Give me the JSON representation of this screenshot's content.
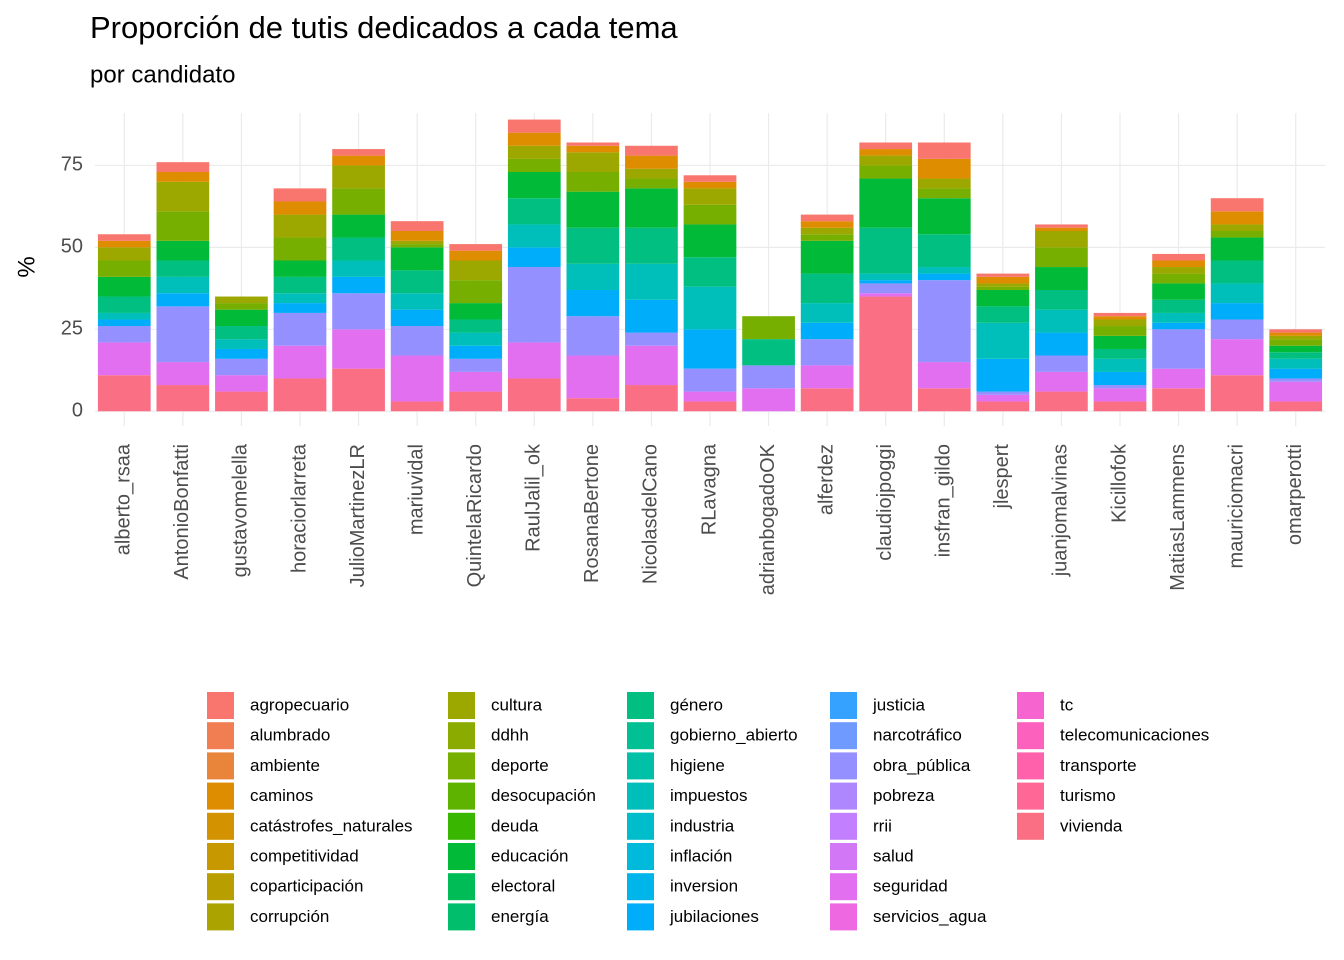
{
  "chart_data": {
    "type": "stacked_bar",
    "title": "Proporción de tutis dedicados a cada tema",
    "subtitle": "por candidato",
    "y_label": "%",
    "categories": [
      "alberto_rsaa",
      "AntonioBonfatti",
      "gustavomelella",
      "horaciorlarreta",
      "JulioMartinezLR",
      "mariuvidal",
      "QuintelaRicardo",
      "RaulJalil_ok",
      "RosanaBertone",
      "NicolasdelCano",
      "RLavagna",
      "adrianbogadoOK",
      "alferdez",
      "claudiojpoggi",
      "insfran_gildo",
      "jlespert",
      "juanjomalvinas",
      "Kicillofok",
      "MatiasLammens",
      "mauriciomacri",
      "omarperotti"
    ],
    "ylim": [
      -4.5,
      91
    ],
    "yticks": [
      0,
      25,
      50,
      75
    ],
    "grid": true,
    "legend": "bottom",
    "series": [
      {
        "name": "agropecuario",
        "color": "#F8766D",
        "values": [
          2,
          3,
          0,
          4,
          2,
          3,
          2,
          4,
          1,
          3,
          2,
          0,
          2,
          2,
          5,
          1,
          1,
          1,
          2,
          4,
          1
        ]
      },
      {
        "name": "alumbrado",
        "color": "#F07E52",
        "values": [
          0,
          0,
          0,
          0,
          0,
          0,
          0,
          0,
          0,
          0,
          0,
          0,
          0,
          0,
          0,
          0,
          0,
          0,
          0,
          0,
          0
        ]
      },
      {
        "name": "ambiente",
        "color": "#E8853A",
        "values": [
          0,
          0,
          0,
          0,
          0,
          0,
          0,
          0,
          0,
          0,
          0,
          0,
          0,
          0,
          0,
          0,
          0,
          0,
          0,
          0,
          0
        ]
      },
      {
        "name": "caminos",
        "color": "#DE8C00",
        "values": [
          2,
          3,
          0,
          4,
          3,
          3,
          3,
          4,
          2,
          4,
          2,
          0,
          2,
          2,
          6,
          2,
          1,
          1,
          2,
          4,
          1
        ]
      },
      {
        "name": "catástrofes_naturales",
        "color": "#D39200",
        "values": [
          0,
          0,
          0,
          0,
          0,
          0,
          0,
          0,
          0,
          0,
          0,
          0,
          0,
          0,
          0,
          0,
          0,
          0,
          0,
          0,
          0
        ]
      },
      {
        "name": "competitividad",
        "color": "#C79800",
        "values": [
          0,
          0,
          0,
          0,
          0,
          0,
          0,
          0,
          0,
          0,
          0,
          0,
          0,
          0,
          0,
          0,
          0,
          0,
          0,
          0,
          0
        ]
      },
      {
        "name": "coparticipación",
        "color": "#B99E00",
        "values": [
          0,
          0,
          0,
          0,
          0,
          0,
          0,
          0,
          0,
          0,
          0,
          0,
          0,
          0,
          0,
          0,
          0,
          0,
          0,
          0,
          0
        ]
      },
      {
        "name": "corrupción",
        "color": "#ABA300",
        "values": [
          0,
          0,
          0,
          0,
          0,
          0,
          0,
          0,
          0,
          0,
          0,
          0,
          0,
          0,
          0,
          0,
          0,
          0,
          0,
          0,
          0
        ]
      },
      {
        "name": "cultura",
        "color": "#9CA700",
        "values": [
          4,
          9,
          2,
          7,
          7,
          1,
          6,
          4,
          6,
          3,
          5,
          0,
          2,
          3,
          3,
          1,
          5,
          2,
          2,
          2,
          1
        ]
      },
      {
        "name": "ddhh",
        "color": "#8BAB00",
        "values": [
          0,
          0,
          0,
          0,
          0,
          0,
          0,
          0,
          0,
          0,
          0,
          0,
          0,
          0,
          0,
          0,
          0,
          0,
          0,
          0,
          0
        ]
      },
      {
        "name": "deporte",
        "color": "#77AF00",
        "values": [
          5,
          9,
          2,
          7,
          8,
          1,
          7,
          4,
          6,
          3,
          6,
          7,
          2,
          4,
          3,
          1,
          6,
          3,
          3,
          2,
          2
        ]
      },
      {
        "name": "desocupación",
        "color": "#5EB300",
        "values": [
          0,
          0,
          0,
          0,
          0,
          0,
          0,
          0,
          0,
          0,
          0,
          0,
          0,
          0,
          0,
          0,
          0,
          0,
          0,
          0,
          0
        ]
      },
      {
        "name": "deuda",
        "color": "#39B600",
        "values": [
          0,
          0,
          0,
          0,
          0,
          0,
          0,
          0,
          0,
          0,
          0,
          0,
          0,
          0,
          0,
          0,
          0,
          0,
          0,
          0,
          0
        ]
      },
      {
        "name": "educación",
        "color": "#00BA38",
        "values": [
          6,
          6,
          5,
          5,
          7,
          7,
          5,
          8,
          11,
          12,
          10,
          0,
          10,
          15,
          11,
          5,
          7,
          4,
          5,
          7,
          2
        ]
      },
      {
        "name": "electoral",
        "color": "#00BC56",
        "values": [
          0,
          0,
          0,
          0,
          0,
          0,
          0,
          0,
          0,
          0,
          0,
          0,
          0,
          0,
          0,
          0,
          0,
          0,
          0,
          0,
          0
        ]
      },
      {
        "name": "energía",
        "color": "#00BE6C",
        "values": [
          0,
          0,
          0,
          0,
          0,
          0,
          0,
          0,
          0,
          0,
          0,
          0,
          0,
          0,
          0,
          0,
          0,
          0,
          0,
          0,
          0
        ]
      },
      {
        "name": "género",
        "color": "#00BF80",
        "values": [
          5,
          5,
          4,
          5,
          7,
          7,
          4,
          8,
          11,
          11,
          9,
          8,
          9,
          14,
          10,
          5,
          6,
          3,
          4,
          7,
          2
        ]
      },
      {
        "name": "gobierno_abierto",
        "color": "#00C094",
        "values": [
          0,
          0,
          0,
          0,
          0,
          0,
          0,
          0,
          0,
          0,
          0,
          0,
          0,
          0,
          0,
          0,
          0,
          0,
          0,
          0,
          0
        ]
      },
      {
        "name": "higiene",
        "color": "#00C0A7",
        "values": [
          0,
          0,
          0,
          0,
          0,
          0,
          0,
          0,
          0,
          0,
          0,
          0,
          0,
          0,
          0,
          0,
          0,
          0,
          0,
          0,
          0
        ]
      },
      {
        "name": "impuestos",
        "color": "#00BFBA",
        "values": [
          2,
          5,
          3,
          3,
          5,
          5,
          4,
          7,
          8,
          11,
          13,
          0,
          6,
          2,
          2,
          11,
          7,
          4,
          3,
          6,
          3
        ]
      },
      {
        "name": "industria",
        "color": "#00BDCB",
        "values": [
          0,
          0,
          0,
          0,
          0,
          0,
          0,
          0,
          0,
          0,
          0,
          0,
          0,
          0,
          0,
          0,
          0,
          0,
          0,
          0,
          0
        ]
      },
      {
        "name": "inflación",
        "color": "#00BADB",
        "values": [
          0,
          0,
          0,
          0,
          0,
          0,
          0,
          0,
          0,
          0,
          0,
          0,
          0,
          0,
          0,
          0,
          0,
          0,
          0,
          0,
          0
        ]
      },
      {
        "name": "inversion",
        "color": "#00B5EA",
        "values": [
          0,
          0,
          0,
          0,
          0,
          0,
          0,
          0,
          0,
          0,
          0,
          0,
          0,
          0,
          0,
          0,
          0,
          0,
          0,
          0,
          0
        ]
      },
      {
        "name": "jubilaciones",
        "color": "#00ADFA",
        "values": [
          2,
          4,
          3,
          3,
          5,
          5,
          4,
          6,
          8,
          10,
          12,
          0,
          5,
          1,
          2,
          10,
          7,
          4,
          2,
          5,
          3
        ]
      },
      {
        "name": "justicia",
        "color": "#35A2FF",
        "values": [
          0,
          0,
          0,
          0,
          0,
          0,
          0,
          0,
          0,
          0,
          0,
          0,
          0,
          0,
          0,
          0,
          0,
          0,
          0,
          0,
          0
        ]
      },
      {
        "name": "narcotráfico",
        "color": "#6F9AFF",
        "values": [
          0,
          0,
          0,
          0,
          0,
          0,
          0,
          0,
          0,
          0,
          0,
          0,
          0,
          0,
          0,
          0,
          0,
          0,
          0,
          0,
          0
        ]
      },
      {
        "name": "obra_pública",
        "color": "#9590FF",
        "values": [
          5,
          17,
          5,
          10,
          11,
          9,
          4,
          23,
          12,
          4,
          7,
          7,
          8,
          3,
          25,
          1,
          5,
          1,
          12,
          6,
          1
        ]
      },
      {
        "name": "pobreza",
        "color": "#AE87FF",
        "values": [
          0,
          0,
          0,
          0,
          0,
          0,
          0,
          0,
          0,
          0,
          0,
          0,
          0,
          0,
          0,
          0,
          0,
          0,
          0,
          0,
          0
        ]
      },
      {
        "name": "rrii",
        "color": "#C27FFF",
        "values": [
          0,
          0,
          0,
          0,
          0,
          0,
          0,
          0,
          0,
          0,
          0,
          0,
          0,
          0,
          0,
          0,
          0,
          0,
          0,
          0,
          0
        ]
      },
      {
        "name": "salud",
        "color": "#D277F5",
        "values": [
          0,
          0,
          0,
          0,
          0,
          0,
          0,
          0,
          0,
          0,
          0,
          0,
          0,
          0,
          0,
          0,
          0,
          0,
          0,
          0,
          0
        ]
      },
      {
        "name": "seguridad",
        "color": "#E16FF0",
        "values": [
          10,
          7,
          5,
          10,
          12,
          14,
          6,
          11,
          13,
          12,
          3,
          7,
          7,
          1,
          8,
          2,
          6,
          4,
          6,
          11,
          6
        ]
      },
      {
        "name": "servicios_agua",
        "color": "#ED68E1",
        "values": [
          0,
          0,
          0,
          0,
          0,
          0,
          0,
          0,
          0,
          0,
          0,
          0,
          0,
          0,
          0,
          0,
          0,
          0,
          0,
          0,
          0
        ]
      },
      {
        "name": "tc",
        "color": "#F664D0",
        "values": [
          0,
          0,
          0,
          0,
          0,
          0,
          0,
          0,
          0,
          0,
          0,
          0,
          0,
          0,
          0,
          0,
          0,
          0,
          0,
          0,
          0
        ]
      },
      {
        "name": "telecomunicaciones",
        "color": "#FC61BE",
        "values": [
          0,
          0,
          0,
          0,
          0,
          0,
          0,
          0,
          0,
          0,
          0,
          0,
          0,
          0,
          0,
          0,
          0,
          0,
          0,
          0,
          0
        ]
      },
      {
        "name": "transporte",
        "color": "#FF62AB",
        "values": [
          0,
          0,
          0,
          0,
          0,
          0,
          0,
          0,
          0,
          0,
          0,
          0,
          0,
          0,
          0,
          0,
          0,
          0,
          0,
          0,
          0
        ]
      },
      {
        "name": "turismo",
        "color": "#FF6797",
        "values": [
          0,
          0,
          0,
          0,
          0,
          0,
          0,
          0,
          0,
          0,
          0,
          0,
          0,
          0,
          0,
          0,
          0,
          0,
          0,
          0,
          0
        ]
      },
      {
        "name": "vivienda",
        "color": "#FB6F84",
        "values": [
          11,
          8,
          6,
          10,
          13,
          3,
          6,
          10,
          4,
          8,
          3,
          0,
          7,
          35,
          7,
          3,
          6,
          3,
          7,
          11,
          3
        ]
      }
    ]
  }
}
